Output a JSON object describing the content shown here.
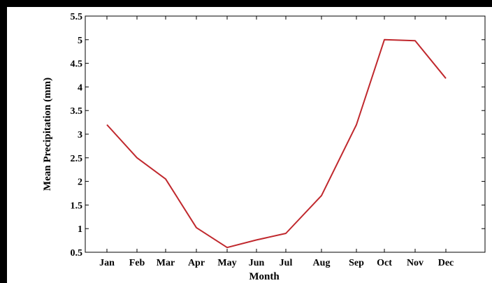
{
  "chart_data": {
    "type": "line",
    "title": "",
    "xlabel": "Month",
    "ylabel": "Mean Precipitation (mm)",
    "categories": [
      "Jan",
      "Feb",
      "Mar",
      "Apr",
      "May",
      "Jun",
      "Jul",
      "Aug",
      "Sep",
      "Oct",
      "Nov",
      "Dec"
    ],
    "series": [
      {
        "values": [
          3.2,
          2.5,
          2.05,
          1.02,
          0.6,
          0.76,
          0.9,
          1.7,
          3.2,
          5.0,
          4.98,
          4.18
        ]
      }
    ],
    "ylim": [
      0.5,
      5.5
    ],
    "yticks": [
      "0.5",
      "1",
      "1.5",
      "2",
      "2.5",
      "3",
      "3.5",
      "4",
      "4.5",
      "5",
      "5.5"
    ],
    "grid": false,
    "line_color": "#c0282d"
  }
}
